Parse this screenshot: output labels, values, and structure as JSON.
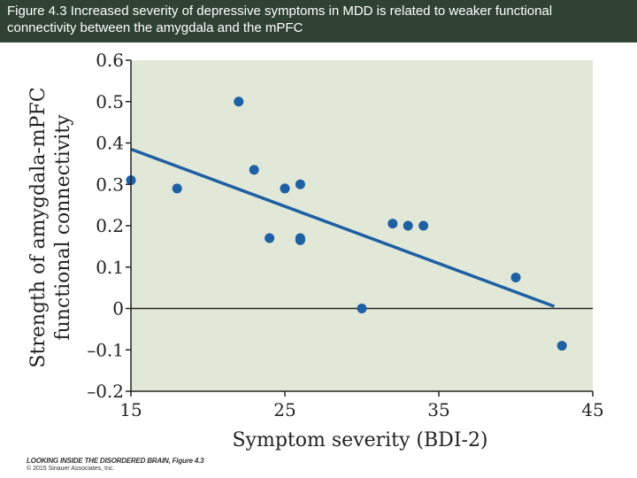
{
  "header": {
    "title_line1": "Figure 4.3 Increased severity of depressive symptoms in MDD is related to weaker functional",
    "title_line2": "connectivity between the amygdala and the mPFC"
  },
  "chart_data": {
    "type": "scatter",
    "title": "",
    "xlabel": "Symptom severity (BDI-2)",
    "ylabel_line1": "Strength of amygdala-mPFC",
    "ylabel_line2": "functional connectivity",
    "xlim": [
      15,
      45
    ],
    "ylim": [
      -0.2,
      0.6
    ],
    "x_ticks": [
      15,
      25,
      35,
      45
    ],
    "x_tick_labels": [
      "15",
      "25",
      "35",
      "45"
    ],
    "y_ticks": [
      0.6,
      0.5,
      0.4,
      0.3,
      0.2,
      0.1,
      0,
      -0.1,
      -0.2
    ],
    "y_tick_labels": [
      "0.6",
      "0.5",
      "0.4",
      "0.3",
      "0.2",
      "0.1",
      "0",
      "–0.1",
      "–0.2"
    ],
    "grid": false,
    "zero_line": true,
    "colors": {
      "points": "#1f5fa3",
      "line": "#1f5fa3",
      "plot_bg": "#e1e8d8",
      "title_bg": "#2f4233"
    },
    "points": [
      {
        "x": 15,
        "y": 0.31
      },
      {
        "x": 18,
        "y": 0.29
      },
      {
        "x": 22,
        "y": 0.5
      },
      {
        "x": 23,
        "y": 0.335
      },
      {
        "x": 24,
        "y": 0.17
      },
      {
        "x": 25,
        "y": 0.29
      },
      {
        "x": 26,
        "y": 0.3
      },
      {
        "x": 26,
        "y": 0.17
      },
      {
        "x": 26,
        "y": 0.165
      },
      {
        "x": 30,
        "y": 0.0
      },
      {
        "x": 32,
        "y": 0.205
      },
      {
        "x": 33,
        "y": 0.2
      },
      {
        "x": 34,
        "y": 0.2
      },
      {
        "x": 40,
        "y": 0.075
      },
      {
        "x": 43,
        "y": -0.09
      }
    ],
    "trend_line": {
      "x1": 15,
      "y1": 0.385,
      "x2": 42.5,
      "y2": 0.005
    }
  },
  "credit": {
    "line1": "LOOKING INSIDE THE DISORDERED BRAIN, Figure 4.3",
    "line2": "© 2015 Sinauer Associates, Inc."
  }
}
